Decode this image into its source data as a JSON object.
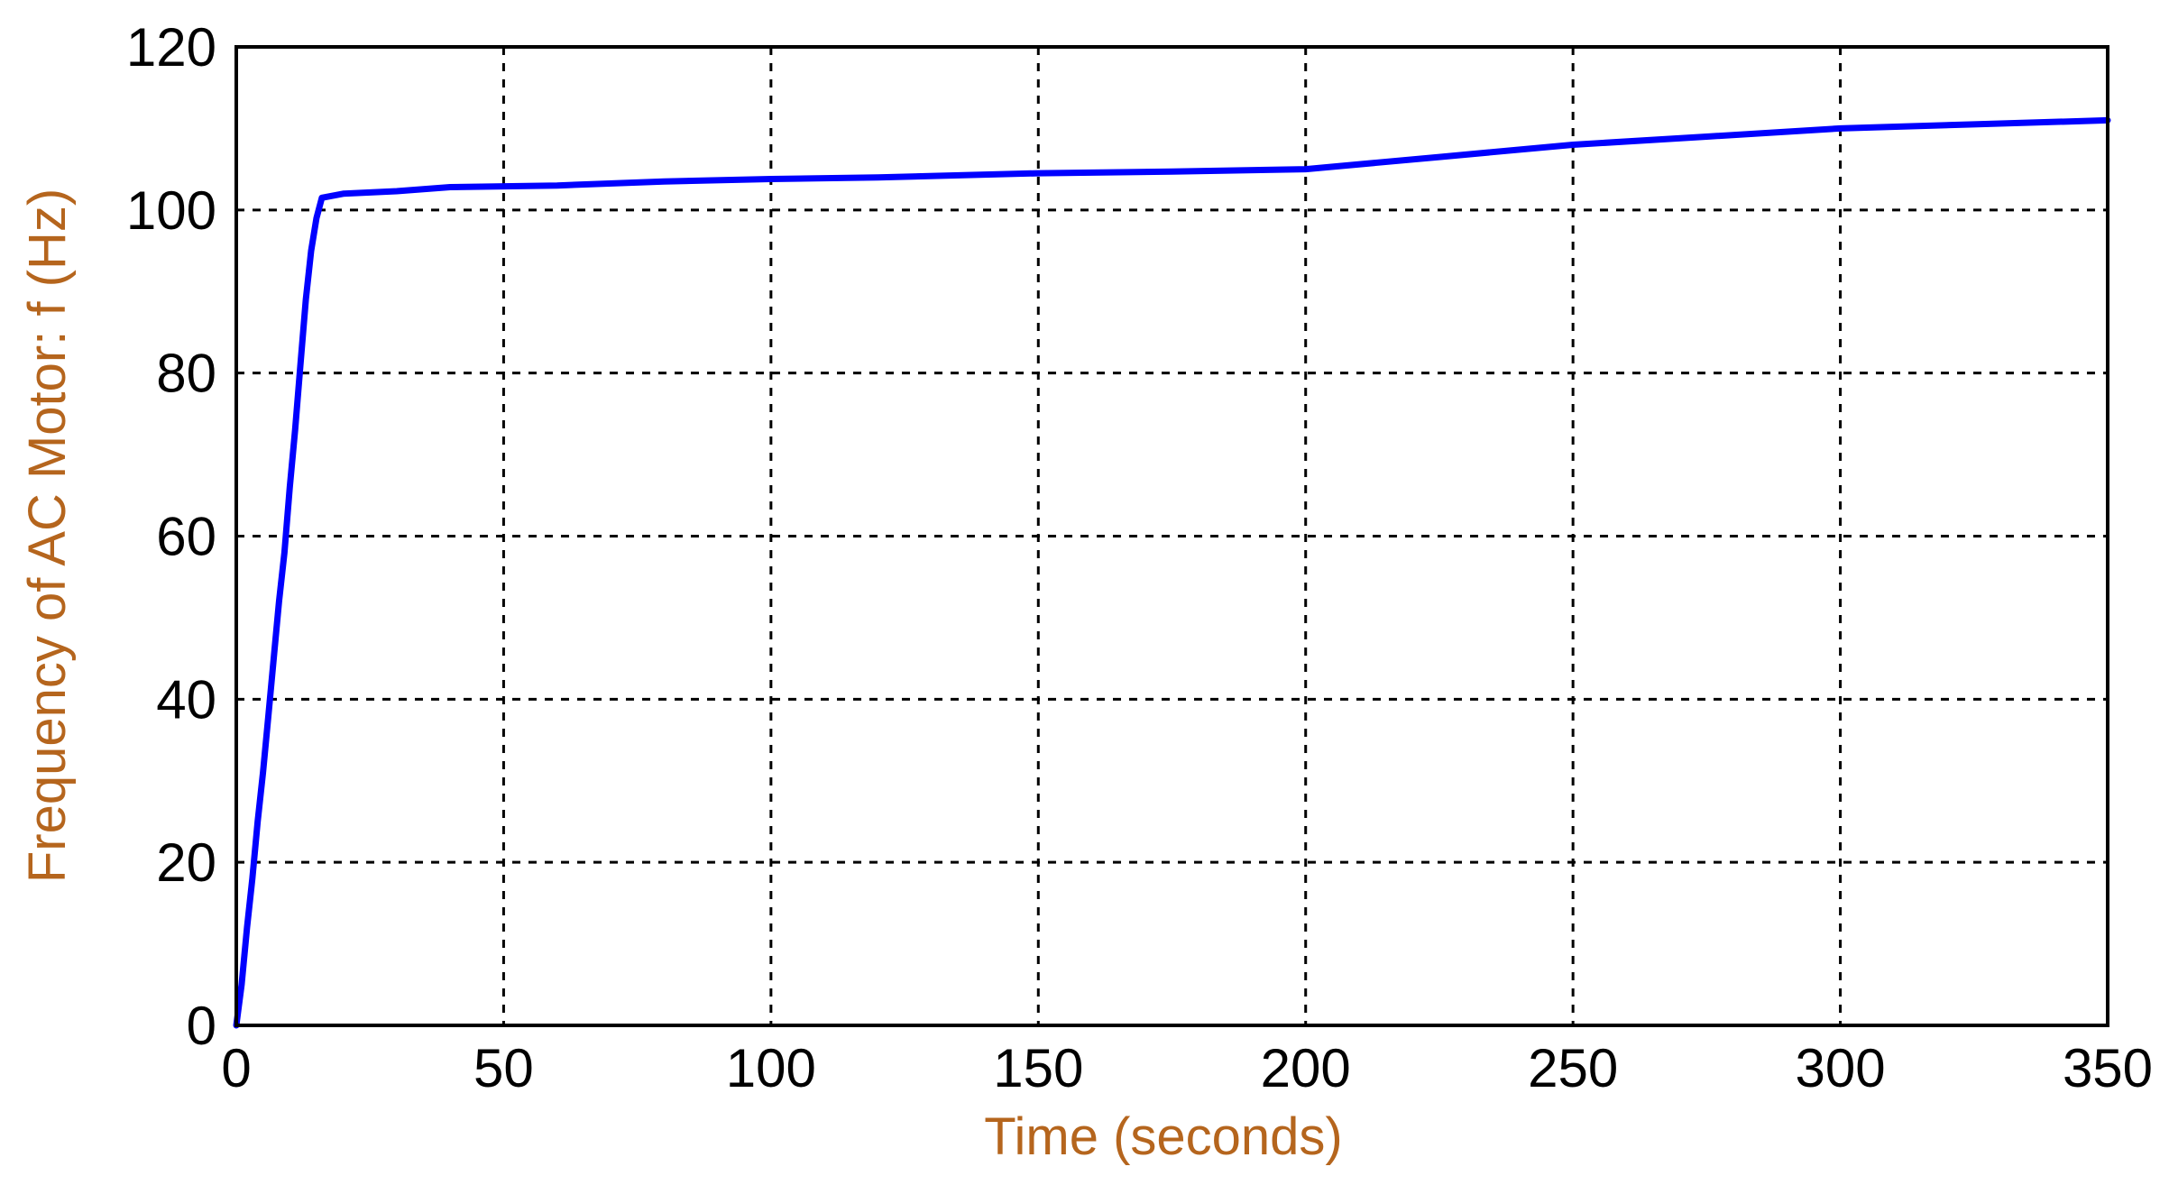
{
  "chart_data": {
    "type": "line",
    "title": "",
    "xlabel": "Time (seconds)",
    "ylabel": "Frequency of AC Motor: f (Hz)",
    "xlim": [
      0,
      350
    ],
    "ylim": [
      0,
      120
    ],
    "x_ticks": [
      0,
      50,
      100,
      150,
      200,
      250,
      300,
      350
    ],
    "y_ticks": [
      0,
      20,
      40,
      60,
      80,
      100,
      120
    ],
    "x_tick_labels": [
      "0",
      "50",
      "100",
      "150",
      "200",
      "250",
      "300",
      "350"
    ],
    "y_tick_labels": [
      "0",
      "20",
      "40",
      "60",
      "80",
      "100",
      "120"
    ],
    "grid": true,
    "legend": "none",
    "colors": {
      "series": "#0000ff",
      "axis_label": "#b5651d",
      "frame": "#000000"
    },
    "series": [
      {
        "x": [
          0,
          1,
          2,
          3,
          4,
          5,
          6,
          7,
          8,
          9,
          10,
          11,
          12,
          13,
          14,
          15,
          16,
          20,
          30,
          40,
          60,
          80,
          100,
          120,
          150,
          175,
          200,
          225,
          250,
          275,
          300,
          325,
          350
        ],
        "y": [
          0,
          5,
          12,
          18,
          25,
          31,
          38,
          45,
          52,
          58,
          66,
          73,
          81,
          89,
          95,
          99,
          101.5,
          102,
          102.3,
          102.8,
          103,
          103.5,
          103.8,
          104,
          104.5,
          104.7,
          105,
          106.5,
          108,
          109,
          110,
          110.5,
          111
        ]
      }
    ]
  }
}
